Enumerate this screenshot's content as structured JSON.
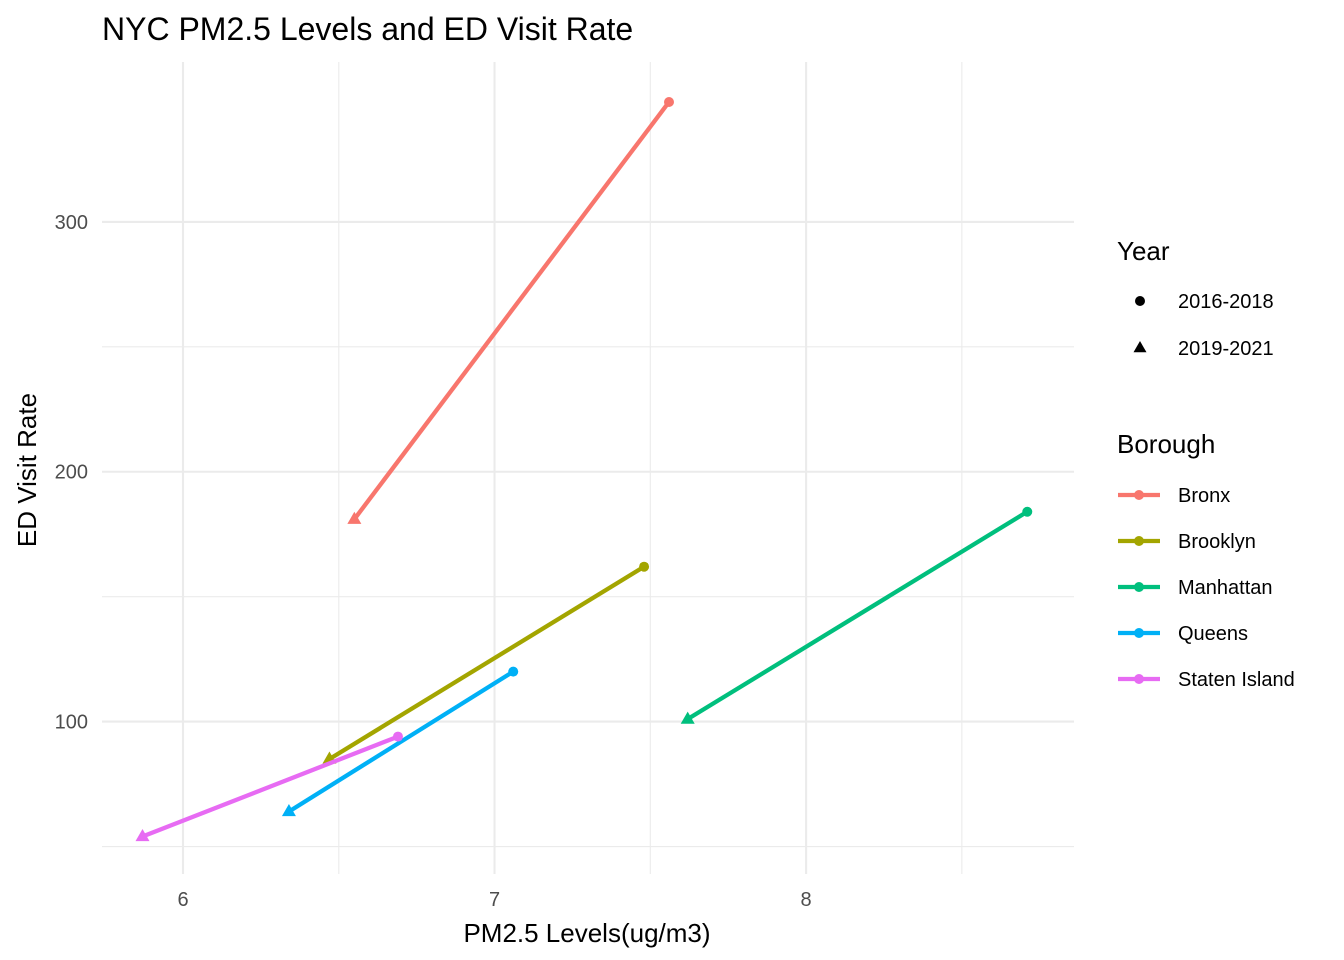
{
  "chart_data": {
    "type": "line",
    "title": "NYC PM2.5 Levels and ED Visit Rate",
    "xlabel": "PM2.5 Levels(ug/m3)",
    "ylabel": "ED Visit Rate",
    "xlim": [
      5.74,
      8.86
    ],
    "ylim": [
      39,
      364
    ],
    "x_ticks": [
      6,
      7,
      8
    ],
    "x_minor_ticks": [
      6.5,
      7.5,
      8.5
    ],
    "y_ticks": [
      100,
      200,
      300
    ],
    "y_minor_ticks": [
      50,
      150,
      250
    ],
    "grid": true,
    "legend_position": "right",
    "legends": {
      "year": {
        "title": "Year",
        "entries": [
          {
            "label": "2016-2018",
            "shape": "circle"
          },
          {
            "label": "2019-2021",
            "shape": "triangle"
          }
        ]
      },
      "borough": {
        "title": "Borough"
      }
    },
    "series": [
      {
        "name": "Bronx",
        "color": "#F8766D",
        "points": [
          {
            "year": "2016-2018",
            "x": 7.56,
            "y": 348
          },
          {
            "year": "2019-2021",
            "x": 6.55,
            "y": 181
          }
        ]
      },
      {
        "name": "Brooklyn",
        "color": "#A3A500",
        "points": [
          {
            "year": "2016-2018",
            "x": 7.48,
            "y": 162
          },
          {
            "year": "2019-2021",
            "x": 6.47,
            "y": 85
          }
        ]
      },
      {
        "name": "Manhattan",
        "color": "#00BF7D",
        "points": [
          {
            "year": "2016-2018",
            "x": 8.71,
            "y": 184
          },
          {
            "year": "2019-2021",
            "x": 7.62,
            "y": 101
          }
        ]
      },
      {
        "name": "Queens",
        "color": "#00B0F6",
        "points": [
          {
            "year": "2016-2018",
            "x": 7.06,
            "y": 120
          },
          {
            "year": "2019-2021",
            "x": 6.34,
            "y": 64
          }
        ]
      },
      {
        "name": "Staten Island",
        "color": "#E76BF3",
        "points": [
          {
            "year": "2016-2018",
            "x": 6.69,
            "y": 94
          },
          {
            "year": "2019-2021",
            "x": 5.87,
            "y": 54
          }
        ]
      }
    ]
  }
}
